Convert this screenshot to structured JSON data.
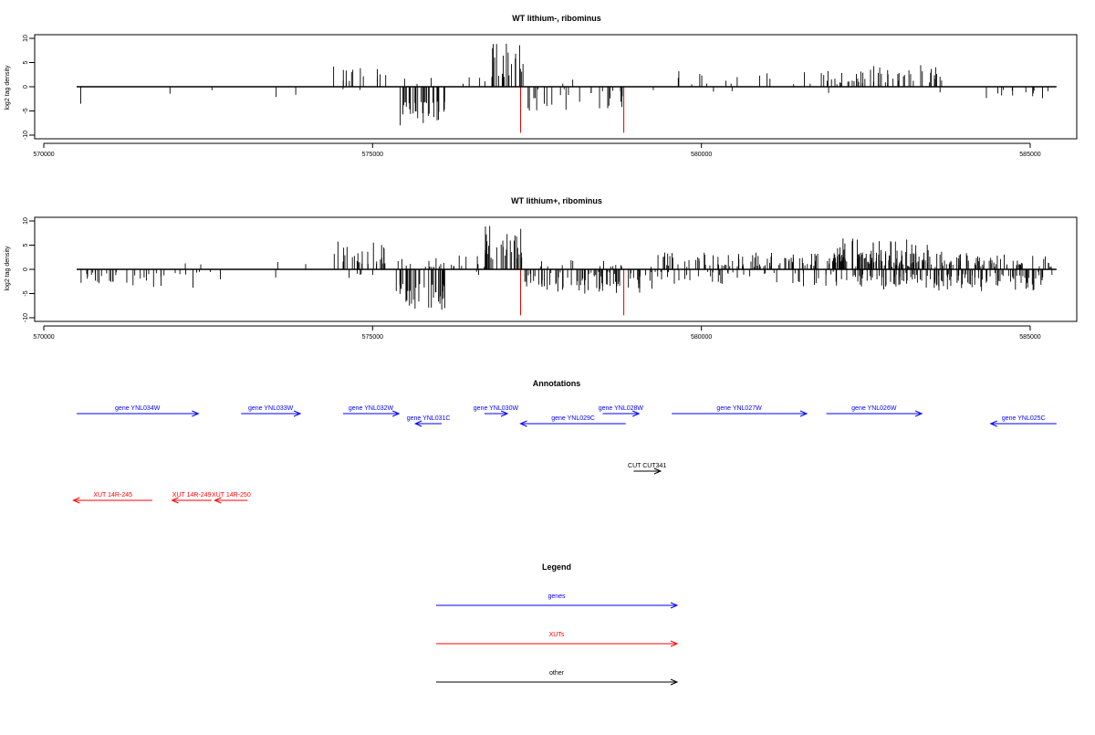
{
  "chart_data": [
    {
      "type": "bar",
      "title": "WT lithium-, ribominus",
      "ylabel": "log2 tag density",
      "xlabel": "",
      "xlim": [
        570000,
        585500
      ],
      "ylim": [
        -10,
        10
      ],
      "x_ticks": [
        570000,
        575000,
        580000,
        585000
      ],
      "y_ticks": [
        10,
        5,
        0,
        -5,
        -10
      ],
      "baseline": [
        570500,
        585400
      ],
      "clusters": [
        {
          "from": 570550,
          "to": 570600,
          "min": 2,
          "max": 4,
          "dir": -1,
          "density": 0.1
        },
        {
          "from": 571850,
          "to": 572000,
          "min": 1,
          "max": 3.5,
          "dir": -1,
          "density": 0.1
        },
        {
          "from": 572200,
          "to": 572700,
          "min": 0.5,
          "max": 1.5,
          "dir": -1,
          "density": 0.04
        },
        {
          "from": 573500,
          "to": 573550,
          "min": 2,
          "max": 3,
          "dir": -1,
          "density": 0.1
        },
        {
          "from": 573800,
          "to": 574000,
          "min": 1,
          "max": 2.5,
          "dir": -1,
          "density": 0.05
        },
        {
          "from": 574400,
          "to": 575300,
          "min": 1,
          "max": 5.5,
          "dir": 1,
          "density": 0.3
        },
        {
          "from": 574400,
          "to": 575000,
          "min": 0.5,
          "max": 2,
          "dir": -1,
          "density": 0.05
        },
        {
          "from": 575400,
          "to": 576100,
          "min": 3,
          "max": 8,
          "dir": -1,
          "density": 0.9
        },
        {
          "from": 575400,
          "to": 576000,
          "min": 0.5,
          "max": 2,
          "dir": 1,
          "density": 0.1
        },
        {
          "from": 576200,
          "to": 576700,
          "min": 0.5,
          "max": 2,
          "dir": 1,
          "density": 0.08
        },
        {
          "from": 576600,
          "to": 576750,
          "min": 1,
          "max": 3.5,
          "dir": 1,
          "density": 0.2
        },
        {
          "from": 576800,
          "to": 577300,
          "min": 2,
          "max": 9.5,
          "dir": 1,
          "density": 1
        },
        {
          "from": 577300,
          "to": 578800,
          "min": 0.5,
          "max": 5,
          "dir": -1,
          "density": 0.35
        },
        {
          "from": 577300,
          "to": 578500,
          "min": 0.5,
          "max": 1.5,
          "dir": 1,
          "density": 0.04
        },
        {
          "from": 579100,
          "to": 579300,
          "min": 0.5,
          "max": 1.5,
          "dir": -1,
          "density": 0.05
        },
        {
          "from": 579600,
          "to": 583700,
          "min": 0.5,
          "max": 3.5,
          "dir": 1,
          "density": 0.2
        },
        {
          "from": 579700,
          "to": 580500,
          "min": 0.5,
          "max": 1.5,
          "dir": -1,
          "density": 0.05
        },
        {
          "from": 581900,
          "to": 583600,
          "min": 1,
          "max": 4.5,
          "dir": 1,
          "density": 0.3
        },
        {
          "from": 581900,
          "to": 582100,
          "min": 1,
          "max": 2.5,
          "dir": -1,
          "density": 0.1
        },
        {
          "from": 583300,
          "to": 583700,
          "min": 0.5,
          "max": 2,
          "dir": -1,
          "density": 0.05
        },
        {
          "from": 584300,
          "to": 585350,
          "min": 0.5,
          "max": 3.5,
          "dir": -1,
          "density": 0.25
        }
      ],
      "red_bars": [
        {
          "x": 577250,
          "y": -9.5
        },
        {
          "x": 578820,
          "y": -9.5
        }
      ],
      "seed": 17
    },
    {
      "type": "bar",
      "title": "WT lithium+, ribominus",
      "ylabel": "log2 tag density",
      "xlabel": "",
      "xlim": [
        570000,
        585500
      ],
      "ylim": [
        -10,
        10
      ],
      "x_ticks": [
        570000,
        575000,
        580000,
        585000
      ],
      "y_ticks": [
        10,
        5,
        0,
        -5,
        -10
      ],
      "baseline": [
        570500,
        585400
      ],
      "clusters": [
        {
          "from": 570550,
          "to": 572700,
          "min": 0.5,
          "max": 4,
          "dir": -1,
          "density": 0.35
        },
        {
          "from": 571900,
          "to": 572700,
          "min": 0.5,
          "max": 1.5,
          "dir": 1,
          "density": 0.05
        },
        {
          "from": 573500,
          "to": 573600,
          "min": 0.5,
          "max": 2.5,
          "dir": -1,
          "density": 0.1
        },
        {
          "from": 573500,
          "to": 574200,
          "min": 0.5,
          "max": 2,
          "dir": 1,
          "density": 0.05
        },
        {
          "from": 574400,
          "to": 575300,
          "min": 1,
          "max": 6,
          "dir": 1,
          "density": 0.6
        },
        {
          "from": 574400,
          "to": 575100,
          "min": 0.5,
          "max": 2,
          "dir": -1,
          "density": 0.15
        },
        {
          "from": 575350,
          "to": 576100,
          "min": 3,
          "max": 8.5,
          "dir": -1,
          "density": 1
        },
        {
          "from": 575300,
          "to": 576200,
          "min": 0.5,
          "max": 2.5,
          "dir": 1,
          "density": 0.3
        },
        {
          "from": 576100,
          "to": 576700,
          "min": 0.5,
          "max": 3,
          "dir": 1,
          "density": 0.25
        },
        {
          "from": 576300,
          "to": 576700,
          "min": 0.5,
          "max": 1.5,
          "dir": -1,
          "density": 0.1
        },
        {
          "from": 576700,
          "to": 577300,
          "min": 2,
          "max": 9.5,
          "dir": 1,
          "density": 1
        },
        {
          "from": 577300,
          "to": 579300,
          "min": 0.5,
          "max": 5,
          "dir": -1,
          "density": 0.8
        },
        {
          "from": 577300,
          "to": 579300,
          "min": 0.5,
          "max": 2,
          "dir": 1,
          "density": 0.15
        },
        {
          "from": 579300,
          "to": 585400,
          "min": 0.5,
          "max": 3.5,
          "dir": 1,
          "density": 0.65
        },
        {
          "from": 581850,
          "to": 583800,
          "min": 1,
          "max": 6.5,
          "dir": 1,
          "density": 0.8
        },
        {
          "from": 579300,
          "to": 585400,
          "min": 0.5,
          "max": 3.5,
          "dir": -1,
          "density": 0.3
        },
        {
          "from": 582300,
          "to": 585200,
          "min": 1,
          "max": 4.5,
          "dir": -1,
          "density": 0.6
        }
      ],
      "red_bars": [
        {
          "x": 577250,
          "y": -9.5
        },
        {
          "x": 578820,
          "y": -9.5
        }
      ],
      "seed": 53
    }
  ],
  "annotations": {
    "title": "Annotations",
    "xlim": [
      570000,
      585500
    ],
    "features": [
      {
        "label": "gene YNL034W",
        "start": 570500,
        "end": 572350,
        "row": 0,
        "dir": 1,
        "color": "#0000ff"
      },
      {
        "label": "gene YNL033W",
        "start": 573000,
        "end": 573900,
        "row": 0,
        "dir": 1,
        "color": "#0000ff"
      },
      {
        "label": "gene YNL032W",
        "start": 574550,
        "end": 575400,
        "row": 0,
        "dir": 1,
        "color": "#0000ff"
      },
      {
        "label": "gene YNL031C",
        "start": 575650,
        "end": 576050,
        "row": 1,
        "dir": -1,
        "color": "#0000ff"
      },
      {
        "label": "gene YNL030W",
        "start": 576700,
        "end": 577050,
        "row": 0,
        "dir": 1,
        "color": "#0000ff"
      },
      {
        "label": "gene YNL029C",
        "start": 577250,
        "end": 578850,
        "row": 1,
        "dir": -1,
        "color": "#0000ff"
      },
      {
        "label": "gene YNL028W",
        "start": 578500,
        "end": 579050,
        "row": 0,
        "dir": 1,
        "color": "#0000ff"
      },
      {
        "label": "gene YNL027W",
        "start": 579550,
        "end": 581600,
        "row": 0,
        "dir": 1,
        "color": "#0000ff"
      },
      {
        "label": "gene YNL026W",
        "start": 581900,
        "end": 583350,
        "row": 0,
        "dir": 1,
        "color": "#0000ff"
      },
      {
        "label": "gene YNL025C",
        "start": 584400,
        "end": 585400,
        "row": 1,
        "dir": -1,
        "color": "#0000ff"
      },
      {
        "label": "CUT CUT341",
        "start": 578970,
        "end": 579380,
        "row": 2,
        "dir": 1,
        "color": "#000000"
      },
      {
        "label": "XUT 14R-245",
        "start": 570450,
        "end": 571650,
        "row": 3,
        "dir": -1,
        "color": "#ff0000"
      },
      {
        "label": "XUT 14R-249",
        "start": 571950,
        "end": 572550,
        "row": 3,
        "dir": -1,
        "color": "#ff0000"
      },
      {
        "label": "XUT 14R-250",
        "start": 572600,
        "end": 573100,
        "row": 3,
        "dir": -1,
        "color": "#ff0000"
      }
    ]
  },
  "legend": {
    "title": "Legend",
    "items": [
      {
        "label": "genes",
        "color": "#0000ff"
      },
      {
        "label": "XUTs",
        "color": "#ff0000"
      },
      {
        "label": "other",
        "color": "#000000"
      }
    ]
  }
}
